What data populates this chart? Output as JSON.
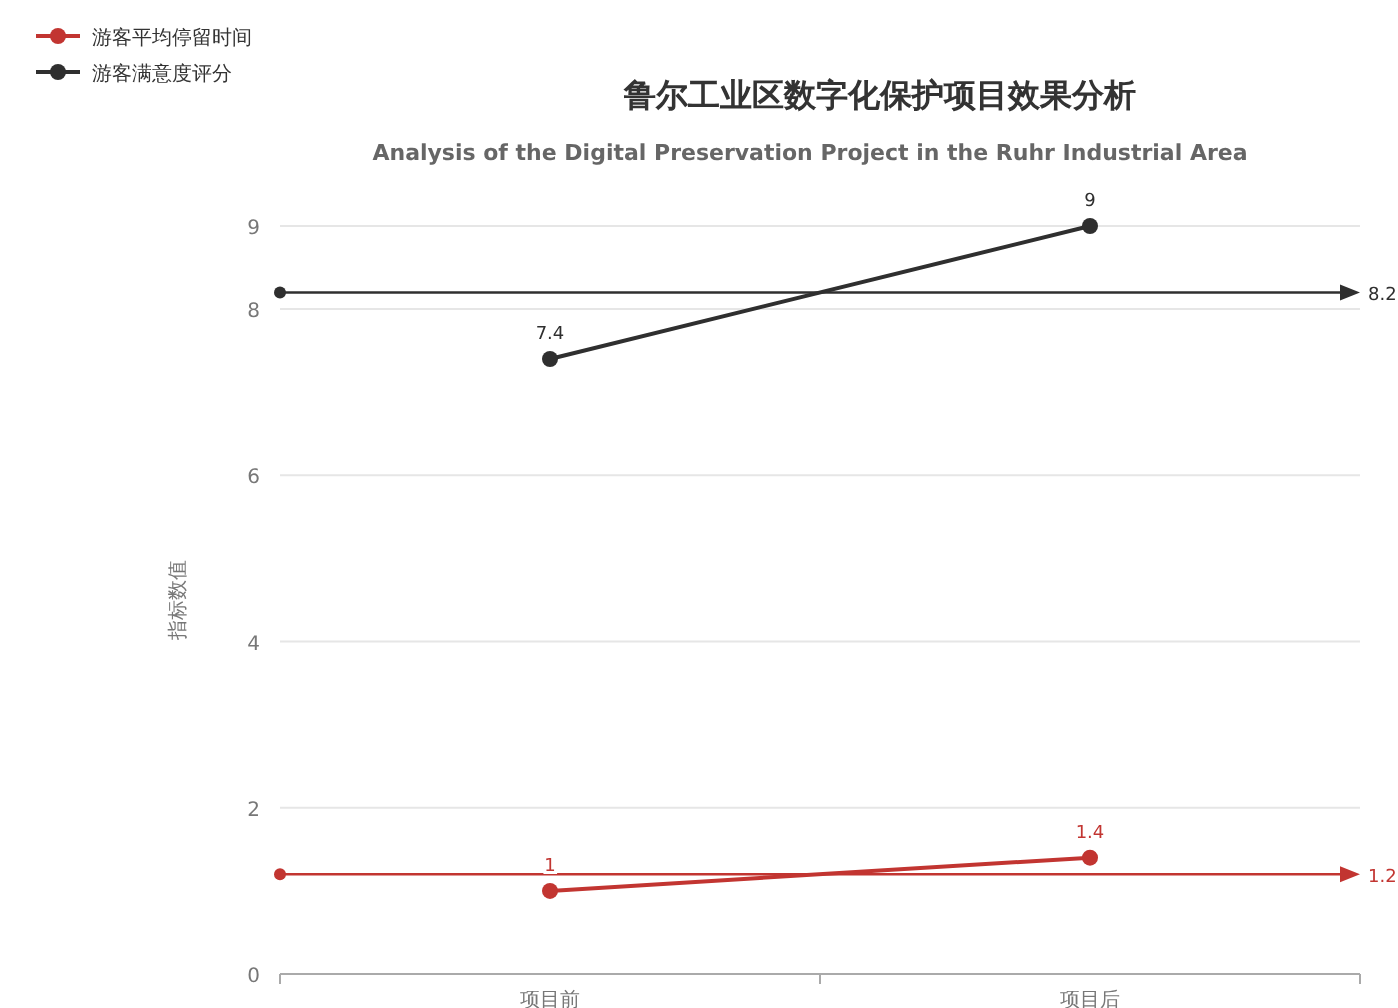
{
  "chart_data": {
    "type": "line",
    "title": "鲁尔工业区数字化保护项目效果分析",
    "subtitle": "Analysis of the Digital Preservation Project in the Ruhr Industrial Area",
    "ylabel": "指标数值",
    "categories": [
      "项目前",
      "项目后"
    ],
    "series": [
      {
        "name": "游客平均停留时间",
        "color": "#c23531",
        "values": [
          1,
          1.4
        ]
      },
      {
        "name": "游客满意度评分",
        "color": "#2f2f2f",
        "values": [
          7.4,
          9
        ]
      }
    ],
    "ylim": [
      0,
      9
    ],
    "yticks": [
      0,
      2,
      4,
      6,
      8,
      9
    ],
    "grid": "y",
    "legend": "top left",
    "marker": "circle",
    "data_labels": true,
    "ref_lines": [
      {
        "axis": "y",
        "value": 1.2,
        "label": "1.2",
        "color": "#c23531"
      },
      {
        "axis": "y",
        "value": 8.2,
        "label": "8.2",
        "color": "#2f2f2f"
      }
    ]
  }
}
